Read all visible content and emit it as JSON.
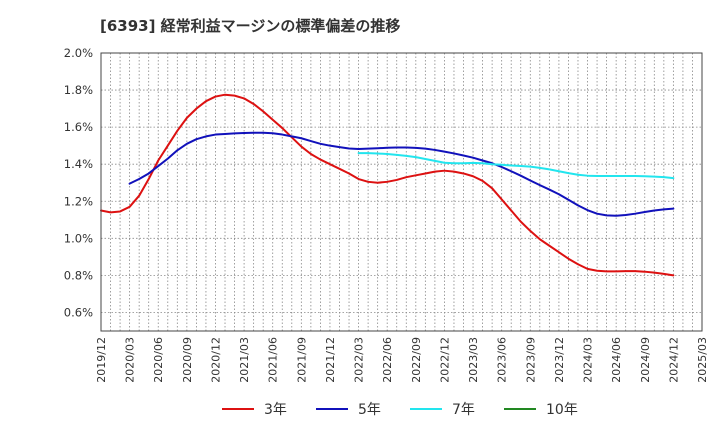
{
  "chart_data": {
    "type": "line",
    "title": "[6393]  経常利益マージンの標準偏差の推移",
    "ylim": [
      0.5,
      2.0
    ],
    "y_ticks": [
      0.6,
      0.8,
      1.0,
      1.2,
      1.4,
      1.6,
      1.8,
      2.0
    ],
    "y_tick_labels": [
      "0.6%",
      "0.8%",
      "1.0%",
      "1.2%",
      "1.4%",
      "1.6%",
      "1.8%",
      "2.0%"
    ],
    "x_tick_labels": [
      "2019/12",
      "2020/03",
      "2020/06",
      "2020/09",
      "2020/12",
      "2021/03",
      "2021/06",
      "2021/09",
      "2021/12",
      "2022/03",
      "2022/06",
      "2022/09",
      "2022/12",
      "2023/03",
      "2023/06",
      "2023/09",
      "2023/12",
      "2024/03",
      "2024/06",
      "2024/09",
      "2024/12",
      "2025/03"
    ],
    "grid": true,
    "legend_position": "bottom",
    "series": [
      {
        "name": "3年",
        "color": "#dd1111",
        "points": [
          [
            "2019/12",
            1.15
          ],
          [
            "2020/01",
            1.14
          ],
          [
            "2020/02",
            1.145
          ],
          [
            "2020/03",
            1.17
          ],
          [
            "2020/04",
            1.23
          ],
          [
            "2020/05",
            1.32
          ],
          [
            "2020/06",
            1.42
          ],
          [
            "2020/07",
            1.5
          ],
          [
            "2020/08",
            1.58
          ],
          [
            "2020/09",
            1.65
          ],
          [
            "2020/10",
            1.7
          ],
          [
            "2020/11",
            1.74
          ],
          [
            "2020/12",
            1.765
          ],
          [
            "2021/01",
            1.775
          ],
          [
            "2021/02",
            1.77
          ],
          [
            "2021/03",
            1.755
          ],
          [
            "2021/04",
            1.725
          ],
          [
            "2021/05",
            1.685
          ],
          [
            "2021/06",
            1.64
          ],
          [
            "2021/07",
            1.595
          ],
          [
            "2021/08",
            1.545
          ],
          [
            "2021/09",
            1.495
          ],
          [
            "2021/10",
            1.455
          ],
          [
            "2021/11",
            1.425
          ],
          [
            "2021/12",
            1.4
          ],
          [
            "2022/01",
            1.375
          ],
          [
            "2022/02",
            1.35
          ],
          [
            "2022/03",
            1.32
          ],
          [
            "2022/04",
            1.305
          ],
          [
            "2022/05",
            1.3
          ],
          [
            "2022/06",
            1.305
          ],
          [
            "2022/07",
            1.315
          ],
          [
            "2022/08",
            1.33
          ],
          [
            "2022/09",
            1.34
          ],
          [
            "2022/10",
            1.35
          ],
          [
            "2022/11",
            1.36
          ],
          [
            "2022/12",
            1.365
          ],
          [
            "2023/01",
            1.36
          ],
          [
            "2023/02",
            1.35
          ],
          [
            "2023/03",
            1.335
          ],
          [
            "2023/04",
            1.31
          ],
          [
            "2023/05",
            1.27
          ],
          [
            "2023/06",
            1.21
          ],
          [
            "2023/07",
            1.15
          ],
          [
            "2023/08",
            1.09
          ],
          [
            "2023/09",
            1.04
          ],
          [
            "2023/10",
            0.995
          ],
          [
            "2023/11",
            0.96
          ],
          [
            "2023/12",
            0.925
          ],
          [
            "2024/01",
            0.89
          ],
          [
            "2024/02",
            0.86
          ],
          [
            "2024/03",
            0.835
          ],
          [
            "2024/04",
            0.825
          ],
          [
            "2024/05",
            0.822
          ],
          [
            "2024/06",
            0.822
          ],
          [
            "2024/07",
            0.823
          ],
          [
            "2024/08",
            0.823
          ],
          [
            "2024/09",
            0.82
          ],
          [
            "2024/10",
            0.815
          ],
          [
            "2024/11",
            0.808
          ],
          [
            "2024/12",
            0.8
          ]
        ]
      },
      {
        "name": "5年",
        "color": "#1111bb",
        "points": [
          [
            "2020/03",
            1.295
          ],
          [
            "2020/04",
            1.32
          ],
          [
            "2020/05",
            1.35
          ],
          [
            "2020/06",
            1.39
          ],
          [
            "2020/07",
            1.43
          ],
          [
            "2020/08",
            1.475
          ],
          [
            "2020/09",
            1.51
          ],
          [
            "2020/10",
            1.535
          ],
          [
            "2020/11",
            1.55
          ],
          [
            "2020/12",
            1.56
          ],
          [
            "2021/01",
            1.563
          ],
          [
            "2021/02",
            1.566
          ],
          [
            "2021/03",
            1.568
          ],
          [
            "2021/04",
            1.57
          ],
          [
            "2021/05",
            1.57
          ],
          [
            "2021/06",
            1.567
          ],
          [
            "2021/07",
            1.56
          ],
          [
            "2021/08",
            1.55
          ],
          [
            "2021/09",
            1.54
          ],
          [
            "2021/10",
            1.525
          ],
          [
            "2021/11",
            1.51
          ],
          [
            "2021/12",
            1.5
          ],
          [
            "2022/01",
            1.492
          ],
          [
            "2022/02",
            1.485
          ],
          [
            "2022/03",
            1.482
          ],
          [
            "2022/04",
            1.484
          ],
          [
            "2022/05",
            1.486
          ],
          [
            "2022/06",
            1.489
          ],
          [
            "2022/07",
            1.49
          ],
          [
            "2022/08",
            1.49
          ],
          [
            "2022/09",
            1.488
          ],
          [
            "2022/10",
            1.484
          ],
          [
            "2022/11",
            1.477
          ],
          [
            "2022/12",
            1.468
          ],
          [
            "2023/01",
            1.458
          ],
          [
            "2023/02",
            1.447
          ],
          [
            "2023/03",
            1.435
          ],
          [
            "2023/04",
            1.42
          ],
          [
            "2023/05",
            1.405
          ],
          [
            "2023/06",
            1.385
          ],
          [
            "2023/07",
            1.362
          ],
          [
            "2023/08",
            1.338
          ],
          [
            "2023/09",
            1.312
          ],
          [
            "2023/10",
            1.287
          ],
          [
            "2023/11",
            1.263
          ],
          [
            "2023/12",
            1.238
          ],
          [
            "2024/01",
            1.208
          ],
          [
            "2024/02",
            1.178
          ],
          [
            "2024/03",
            1.152
          ],
          [
            "2024/04",
            1.133
          ],
          [
            "2024/05",
            1.124
          ],
          [
            "2024/06",
            1.122
          ],
          [
            "2024/07",
            1.126
          ],
          [
            "2024/08",
            1.133
          ],
          [
            "2024/09",
            1.142
          ],
          [
            "2024/10",
            1.15
          ],
          [
            "2024/11",
            1.156
          ],
          [
            "2024/12",
            1.16
          ]
        ]
      },
      {
        "name": "7年",
        "color": "#22e5ee",
        "points": [
          [
            "2022/03",
            1.46
          ],
          [
            "2022/04",
            1.46
          ],
          [
            "2022/05",
            1.458
          ],
          [
            "2022/06",
            1.455
          ],
          [
            "2022/07",
            1.45
          ],
          [
            "2022/08",
            1.445
          ],
          [
            "2022/09",
            1.438
          ],
          [
            "2022/10",
            1.428
          ],
          [
            "2022/11",
            1.418
          ],
          [
            "2022/12",
            1.408
          ],
          [
            "2023/01",
            1.405
          ],
          [
            "2023/02",
            1.405
          ],
          [
            "2023/03",
            1.407
          ],
          [
            "2023/04",
            1.405
          ],
          [
            "2023/05",
            1.4
          ],
          [
            "2023/06",
            1.397
          ],
          [
            "2023/07",
            1.393
          ],
          [
            "2023/08",
            1.39
          ],
          [
            "2023/09",
            1.387
          ],
          [
            "2023/10",
            1.38
          ],
          [
            "2023/11",
            1.372
          ],
          [
            "2023/12",
            1.362
          ],
          [
            "2024/01",
            1.352
          ],
          [
            "2024/02",
            1.343
          ],
          [
            "2024/03",
            1.338
          ],
          [
            "2024/04",
            1.336
          ],
          [
            "2024/05",
            1.336
          ],
          [
            "2024/06",
            1.336
          ],
          [
            "2024/07",
            1.336
          ],
          [
            "2024/08",
            1.336
          ],
          [
            "2024/09",
            1.335
          ],
          [
            "2024/10",
            1.333
          ],
          [
            "2024/11",
            1.33
          ],
          [
            "2024/12",
            1.325
          ]
        ]
      },
      {
        "name": "10年",
        "color": "#228822",
        "points": []
      }
    ]
  }
}
